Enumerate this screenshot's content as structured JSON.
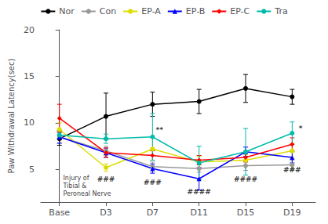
{
  "chart_data": {
    "type": "line",
    "x": [
      0,
      1,
      2,
      3,
      4,
      5
    ],
    "xlim": [
      -0.4,
      5.5
    ],
    "xticks": [
      {
        "value": 0,
        "label": "Base"
      },
      {
        "value": 1,
        "label": "D3"
      },
      {
        "value": 2,
        "label": "D7"
      },
      {
        "value": 3,
        "label": "D11"
      },
      {
        "value": 4,
        "label": "D15"
      },
      {
        "value": 5,
        "label": "D19"
      }
    ],
    "ylabel": "Paw Withdrawal Latency(sec)",
    "ylim": [
      1.5,
      20
    ],
    "yticks": [
      5,
      10,
      15,
      20
    ],
    "grid": false,
    "legend": "top",
    "series": [
      {
        "name": "Nor",
        "color": "black",
        "marker": "circle",
        "values": [
          8.3,
          10.7,
          12.0,
          12.3,
          13.7,
          12.8
        ],
        "errors": [
          0.7,
          2.5,
          1.3,
          1.3,
          1.5,
          0.8
        ]
      },
      {
        "name": "Con",
        "color": "#999999",
        "marker": "circle",
        "values": [
          8.5,
          7.0,
          5.3,
          5.1,
          5.4,
          5.5
        ],
        "errors": [
          0.6,
          0.5,
          0.5,
          0.4,
          0.5,
          0.5
        ]
      },
      {
        "name": "EP-A",
        "color": "#dddd00",
        "marker": "circle",
        "values": [
          9.3,
          5.2,
          7.2,
          5.8,
          6.0,
          7.0
        ],
        "errors": [
          0.7,
          0.4,
          1.2,
          0.6,
          0.6,
          0.8
        ]
      },
      {
        "name": "EP-B",
        "color": "blue",
        "marker": "triangle",
        "values": [
          8.5,
          6.8,
          5.1,
          4.0,
          6.9,
          6.3
        ],
        "errors": [
          0.7,
          0.5,
          0.5,
          1.2,
          0.5,
          0.6
        ]
      },
      {
        "name": "EP-C",
        "color": "red",
        "marker": "diamond",
        "values": [
          10.5,
          6.8,
          6.5,
          6.0,
          6.3,
          7.7
        ],
        "errors": [
          1.5,
          0.5,
          0.5,
          0.5,
          0.5,
          0.7
        ]
      },
      {
        "name": "Tra",
        "color": "#00bbaa",
        "marker": "circle",
        "values": [
          8.7,
          8.3,
          8.5,
          5.7,
          6.9,
          8.9
        ],
        "errors": [
          0.5,
          0.5,
          2.5,
          1.8,
          2.5,
          1.2
        ]
      }
    ],
    "annotations": [
      {
        "text": "###",
        "x": 1.0,
        "y": 3.6
      },
      {
        "text": "###",
        "x": 2.0,
        "y": 3.2
      },
      {
        "text": "**",
        "x": 2.15,
        "y": 8.9
      },
      {
        "text": "####",
        "x": 3.0,
        "y": 2.2
      },
      {
        "text": "####",
        "x": 4.0,
        "y": 3.6
      },
      {
        "text": "###",
        "x": 5.0,
        "y": 4.6
      },
      {
        "text": "*",
        "x": 5.18,
        "y": 9.0
      },
      {
        "text": "Injury of\nTibial &\nPeroneal Nerve",
        "x": 0.08,
        "y": 4.5
      }
    ]
  }
}
